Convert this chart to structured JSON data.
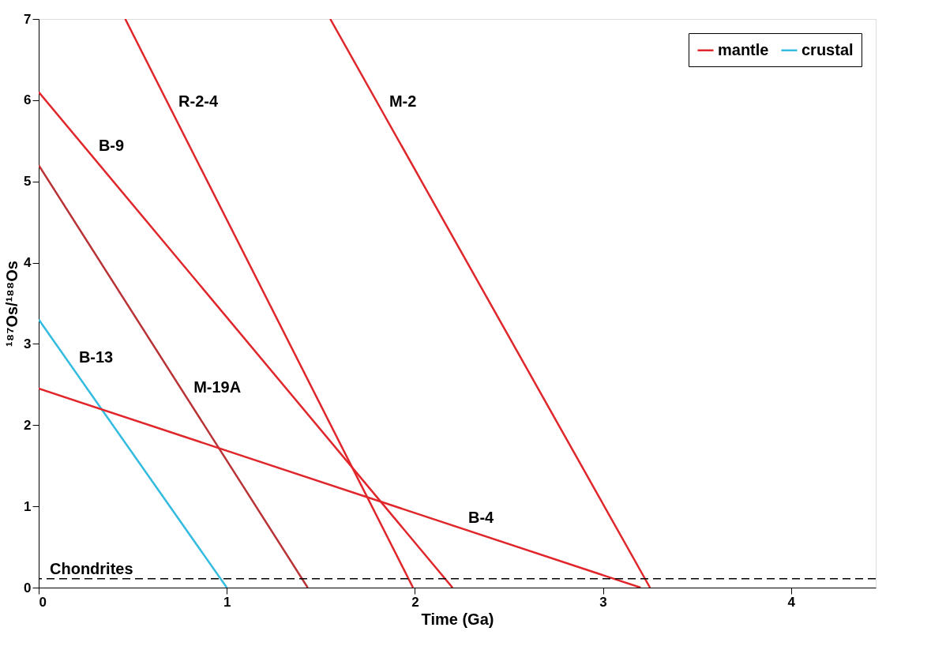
{
  "chart_data": {
    "type": "line",
    "xlabel": "Time (Ga)",
    "ylabel": "¹⁸⁷Os/¹⁸⁸Os",
    "xlim": [
      0,
      4.45
    ],
    "ylim": [
      0,
      7
    ],
    "xticks": [
      0,
      1,
      2,
      3,
      4
    ],
    "yticks": [
      0,
      1,
      2,
      3,
      4,
      5,
      6,
      7
    ],
    "grid": false,
    "legend": "top right",
    "marker": "none",
    "line_style": "solid",
    "series": [
      {
        "name": "mantle",
        "color": "#e0262a",
        "x": [
          0.46,
          1.99
        ],
        "values": [
          7,
          0
        ]
      },
      {
        "color": "#e0262a",
        "x": [
          1.55,
          3.25
        ],
        "values": [
          7,
          0
        ]
      },
      {
        "color": "#e0262a",
        "x": [
          0,
          2.2
        ],
        "values": [
          6.1,
          0
        ]
      },
      {
        "color": "#b83236",
        "x": [
          0,
          1.43
        ],
        "values": [
          5.2,
          0
        ]
      },
      {
        "name": "crustal",
        "color": "#33bbe0",
        "x": [
          0,
          1.0
        ],
        "values": [
          3.3,
          0
        ]
      },
      {
        "color": "#e0262a",
        "x": [
          0,
          3.2
        ],
        "values": [
          2.45,
          0
        ]
      }
    ],
    "ref_lines": [
      {
        "axis": "y",
        "value": 0.11,
        "label": "Chondrites",
        "color": "#000000",
        "line_style": "dashed"
      }
    ],
    "annotations": [
      {
        "text": "R-2-4",
        "x": 0.71,
        "y": 5.85
      },
      {
        "text": "M-2",
        "x": 1.83,
        "y": 5.85
      },
      {
        "text": "B-9",
        "x": 0.285,
        "y": 5.31
      },
      {
        "text": "B-13",
        "x": 0.18,
        "y": 2.7
      },
      {
        "text": "M-19A",
        "x": 0.79,
        "y": 2.33
      },
      {
        "text": "B-4",
        "x": 2.25,
        "y": 0.73
      }
    ]
  }
}
